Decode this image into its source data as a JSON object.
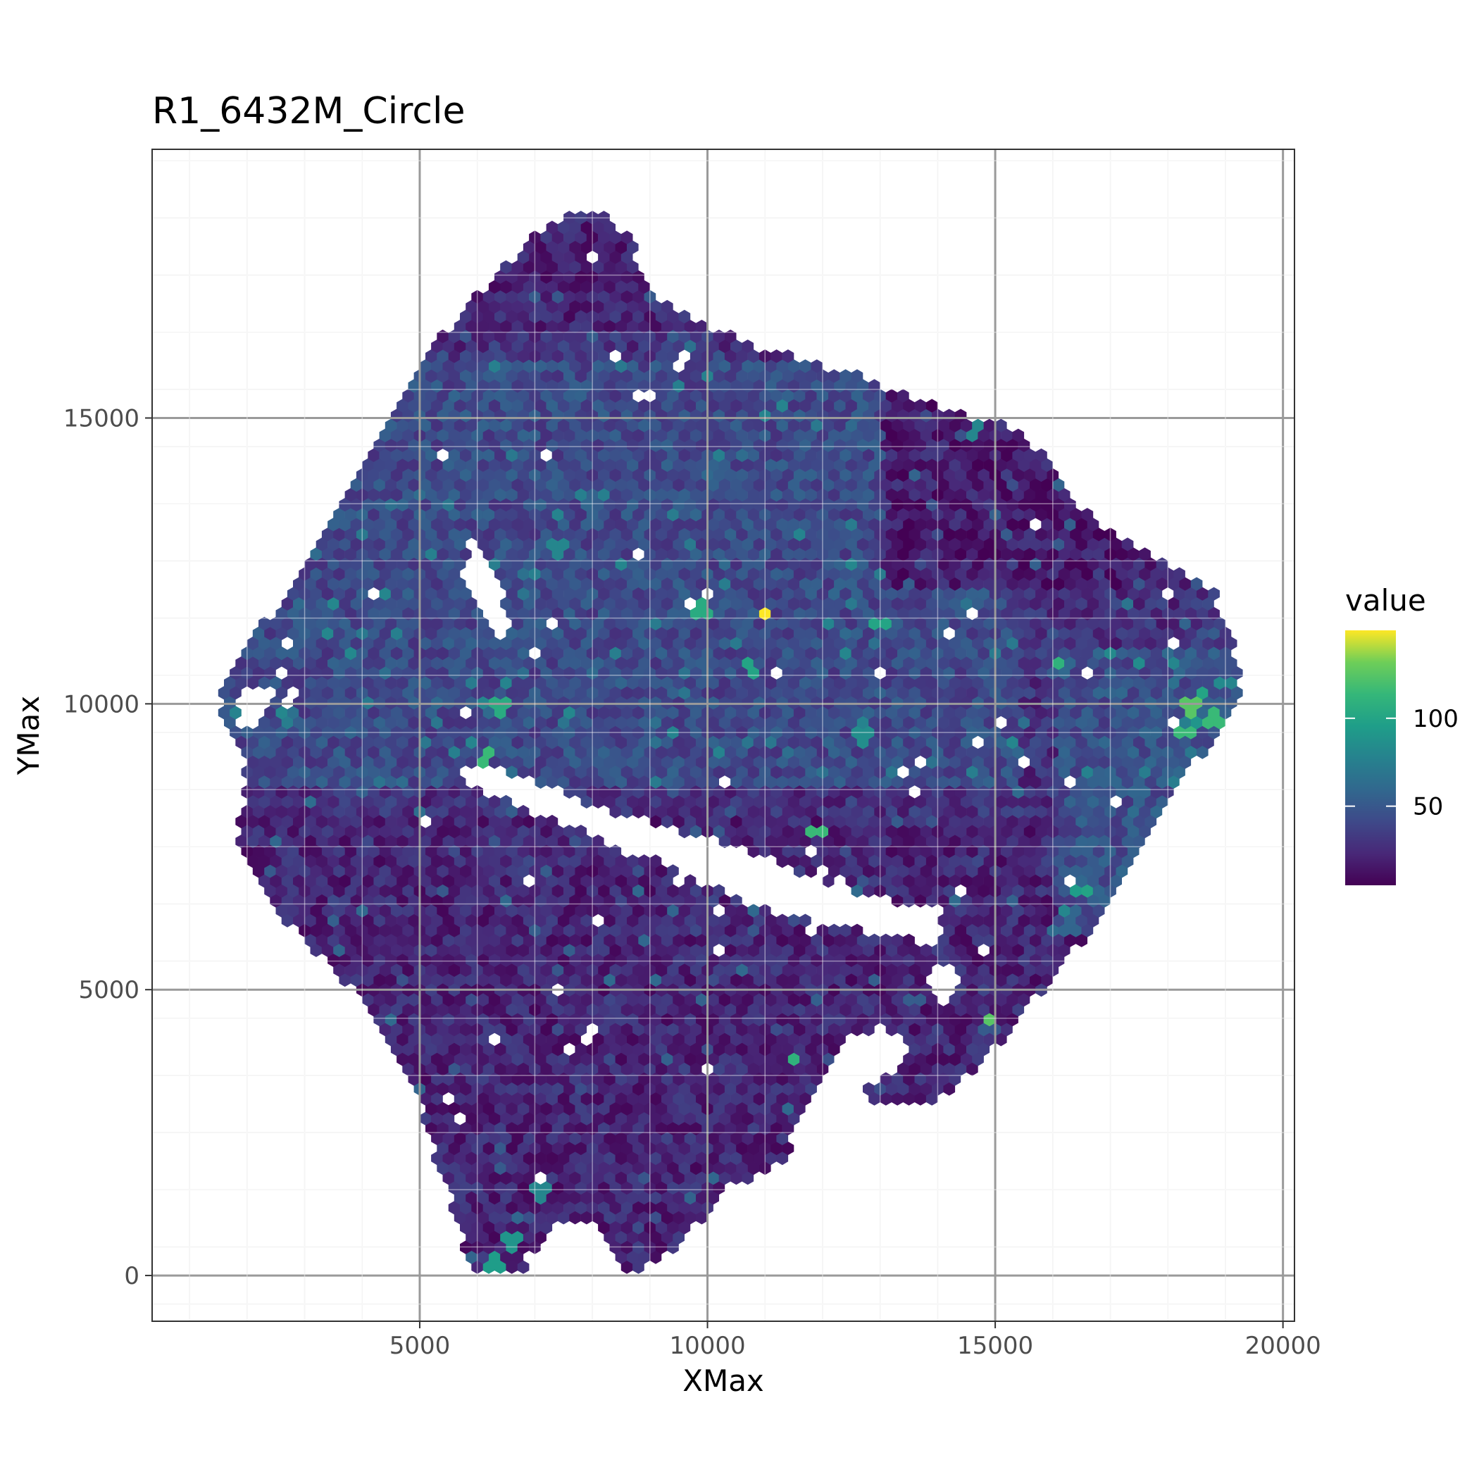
{
  "chart_data": {
    "type": "heatmap",
    "geom": "hexbin",
    "title": "R1_6432M_Circle",
    "xlabel": "XMax",
    "ylabel": "YMax",
    "xlim": [
      350,
      20200
    ],
    "ylim": [
      19700,
      -800
    ],
    "y_reversed": true,
    "x_ticks": [
      5000,
      10000,
      15000,
      20000
    ],
    "x_tick_labels": [
      "5000",
      "10000",
      "15000",
      "20000"
    ],
    "y_ticks": [
      0,
      5000,
      10000,
      15000
    ],
    "y_tick_labels": [
      "0",
      "5000",
      "10000",
      "15000"
    ],
    "grid": true,
    "theme": "bw",
    "legend": {
      "title": "value",
      "position": "right",
      "colormap": "viridis",
      "range": [
        5,
        150
      ],
      "ticks": [
        50,
        100
      ],
      "tick_labels": [
        "50",
        "100"
      ]
    },
    "tissue_outline": [
      [
        5900,
        100
      ],
      [
        6800,
        0
      ],
      [
        7300,
        900
      ],
      [
        7500,
        1000
      ],
      [
        8000,
        1000
      ],
      [
        8700,
        0
      ],
      [
        9500,
        500
      ],
      [
        10300,
        1500
      ],
      [
        11000,
        1800
      ],
      [
        12000,
        2400
      ],
      [
        12500,
        3200
      ],
      [
        13500,
        2900
      ],
      [
        14200,
        3200
      ],
      [
        15200,
        4200
      ],
      [
        17000,
        6500
      ],
      [
        18200,
        8800
      ],
      [
        19000,
        9500
      ],
      [
        19300,
        10500
      ],
      [
        18800,
        12000
      ],
      [
        17800,
        12500
      ],
      [
        16500,
        13400
      ],
      [
        15500,
        14800
      ],
      [
        14000,
        15200
      ],
      [
        12500,
        15800
      ],
      [
        11000,
        16200
      ],
      [
        10000,
        16600
      ],
      [
        9200,
        17000
      ],
      [
        8600,
        18200
      ],
      [
        8000,
        18700
      ],
      [
        7200,
        18400
      ],
      [
        6500,
        17700
      ],
      [
        5000,
        16000
      ],
      [
        4000,
        14200
      ],
      [
        3000,
        12300
      ],
      [
        1800,
        10800
      ],
      [
        1500,
        10000
      ],
      [
        2000,
        8800
      ],
      [
        1800,
        7500
      ],
      [
        2500,
        6400
      ],
      [
        3800,
        5000
      ],
      [
        4800,
        3600
      ],
      [
        5300,
        2000
      ]
    ],
    "gap_regions": [
      [
        [
          5800,
          8600
        ],
        [
          9000,
          7300
        ],
        [
          11000,
          6400
        ],
        [
          12800,
          6000
        ],
        [
          14100,
          5800
        ],
        [
          14000,
          6400
        ],
        [
          12500,
          6700
        ],
        [
          10500,
          7500
        ],
        [
          8400,
          8100
        ],
        [
          6500,
          8800
        ],
        [
          5800,
          9000
        ]
      ],
      [
        [
          11600,
          2000
        ],
        [
          12700,
          3300
        ],
        [
          13400,
          3700
        ],
        [
          13600,
          4100
        ],
        [
          12600,
          4300
        ],
        [
          11900,
          3300
        ],
        [
          11400,
          2400
        ]
      ],
      [
        [
          6300,
          11400
        ],
        [
          6600,
          11200
        ],
        [
          6300,
          12400
        ],
        [
          5900,
          12800
        ],
        [
          5700,
          12400
        ],
        [
          6000,
          11900
        ]
      ],
      [
        [
          1900,
          9600
        ],
        [
          2200,
          9500
        ],
        [
          2500,
          10200
        ],
        [
          2200,
          10400
        ],
        [
          1900,
          10100
        ]
      ],
      [
        [
          13800,
          5100
        ],
        [
          14100,
          4600
        ],
        [
          14400,
          5300
        ],
        [
          14000,
          5400
        ]
      ]
    ],
    "hex_bins": {
      "bin_width": 200,
      "values_description": "per-bin value, mostly 5-70",
      "hotspots": [
        {
          "x": 10950,
          "y": 11600,
          "value": 150
        },
        {
          "x": 6300,
          "y": 200,
          "value": 95
        },
        {
          "x": 6600,
          "y": 600,
          "value": 90
        },
        {
          "x": 7100,
          "y": 1400,
          "value": 80
        },
        {
          "x": 11450,
          "y": 3800,
          "value": 110
        },
        {
          "x": 14900,
          "y": 4450,
          "value": 125
        },
        {
          "x": 13900,
          "y": 6200,
          "value": 110
        },
        {
          "x": 11900,
          "y": 7800,
          "value": 115
        },
        {
          "x": 6150,
          "y": 9100,
          "value": 115
        },
        {
          "x": 6400,
          "y": 9900,
          "value": 105
        },
        {
          "x": 10750,
          "y": 10600,
          "value": 100
        },
        {
          "x": 9900,
          "y": 11700,
          "value": 105
        },
        {
          "x": 13000,
          "y": 11400,
          "value": 100
        },
        {
          "x": 16600,
          "y": 6750,
          "value": 100
        },
        {
          "x": 16450,
          "y": 6700,
          "value": 95
        },
        {
          "x": 18300,
          "y": 9500,
          "value": 115
        },
        {
          "x": 18400,
          "y": 9900,
          "value": 125
        },
        {
          "x": 18800,
          "y": 9800,
          "value": 115
        },
        {
          "x": 18650,
          "y": 10200,
          "value": 100
        },
        {
          "x": 18500,
          "y": 9700,
          "value": 90
        },
        {
          "x": 16100,
          "y": 10700,
          "value": 110
        },
        {
          "x": 14650,
          "y": 14800,
          "value": 80
        },
        {
          "x": 12700,
          "y": 9400,
          "value": 85
        },
        {
          "x": 7400,
          "y": 12700,
          "value": 80
        },
        {
          "x": 8400,
          "y": 10900,
          "value": 75
        },
        {
          "x": 15300,
          "y": 9300,
          "value": 80
        }
      ]
    }
  }
}
